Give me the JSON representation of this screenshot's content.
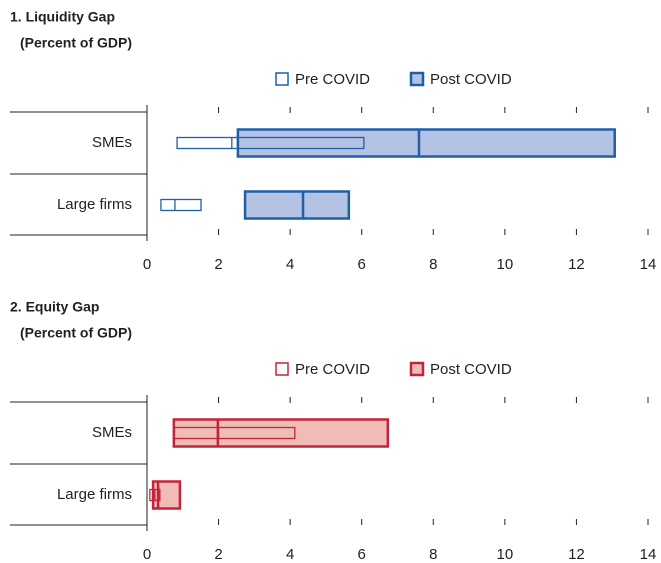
{
  "chart_data": [
    {
      "type": "range",
      "title": "1. Liquidity Gap",
      "subtitle": "(Percent of GDP)",
      "categories": [
        "SMEs",
        "Large firms"
      ],
      "xlim": [
        0,
        14
      ],
      "xticks": [
        0,
        2,
        4,
        6,
        8,
        10,
        12,
        14
      ],
      "series": [
        {
          "name": "Pre COVID",
          "color": "#1f5fa8",
          "fill": "#ffffff",
          "low": [
            0.84,
            0.39
          ],
          "mid": [
            2.37,
            0.78
          ],
          "high": [
            6.06,
            1.51
          ]
        },
        {
          "name": "Post COVID",
          "color": "#1f5fa8",
          "fill": "#b4c3e3",
          "low": [
            2.54,
            2.74
          ],
          "mid": [
            7.6,
            4.36
          ],
          "high": [
            13.07,
            5.64
          ]
        }
      ]
    },
    {
      "type": "range",
      "title": "2. Equity Gap",
      "subtitle": "(Percent of GDP)",
      "categories": [
        "SMEs",
        "Large firms"
      ],
      "xlim": [
        0,
        14
      ],
      "xticks": [
        0,
        2,
        4,
        6,
        8,
        10,
        12,
        14
      ],
      "series": [
        {
          "name": "Pre COVID",
          "color": "#c4243a",
          "fill": "#ffffff",
          "low": [
            0.75,
            0.08
          ],
          "mid": [
            2.0,
            0.22
          ],
          "high": [
            4.13,
            0.36
          ]
        },
        {
          "name": "Post COVID",
          "color": "#c4243a",
          "fill": "#f0bcb8",
          "low": [
            0.75,
            0.17
          ],
          "mid": [
            1.98,
            0.31
          ],
          "high": [
            6.73,
            0.92
          ]
        }
      ]
    }
  ]
}
